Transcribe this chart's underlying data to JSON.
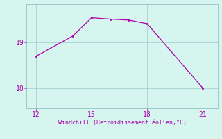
{
  "x": [
    12,
    14,
    15,
    16,
    17,
    18,
    21
  ],
  "y": [
    18.7,
    19.15,
    19.55,
    19.52,
    19.5,
    19.42,
    18.0
  ],
  "line_color": "#aa00aa",
  "marker_color": "#aa00aa",
  "background_color": "#d6f5ef",
  "grid_color": "#99cccc",
  "xlabel": "Windchill (Refroidissement éolien,°C)",
  "xlabel_color": "#aa00aa",
  "tick_color": "#aa00aa",
  "spine_color": "#88bbbb",
  "xlim": [
    11.5,
    21.8
  ],
  "ylim": [
    17.55,
    19.85
  ],
  "xticks": [
    12,
    15,
    18,
    21
  ],
  "yticks": [
    18,
    19
  ],
  "figsize": [
    3.2,
    2.0
  ],
  "dpi": 100
}
